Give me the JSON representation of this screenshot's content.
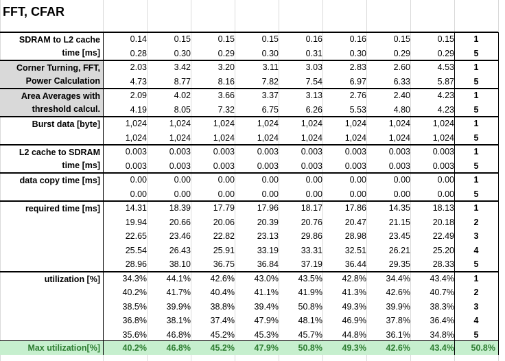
{
  "title": "FFT, CFAR",
  "blocks": [
    {
      "label": "SDRAM to L2 cache time [ms]",
      "gray": false,
      "rows": [
        {
          "values": [
            "0.14",
            "0.15",
            "0.15",
            "0.15",
            "0.16",
            "0.16",
            "0.15",
            "0.15"
          ],
          "n": "1"
        },
        {
          "values": [
            "0.28",
            "0.30",
            "0.29",
            "0.30",
            "0.31",
            "0.30",
            "0.29",
            "0.29"
          ],
          "n": "5"
        }
      ]
    },
    {
      "label": "Corner Turning, FFT, Power Calculation",
      "gray": true,
      "rows": [
        {
          "values": [
            "2.03",
            "3.42",
            "3.20",
            "3.11",
            "3.03",
            "2.83",
            "2.60",
            "4.53"
          ],
          "n": "1"
        },
        {
          "values": [
            "4.73",
            "8.77",
            "8.16",
            "7.82",
            "7.54",
            "6.97",
            "6.33",
            "5.87"
          ],
          "n": "5"
        }
      ]
    },
    {
      "label": "Area Averages with threshold calcul.",
      "gray": true,
      "rows": [
        {
          "values": [
            "2.09",
            "4.02",
            "3.66",
            "3.37",
            "3.13",
            "2.76",
            "2.40",
            "4.23"
          ],
          "n": "1"
        },
        {
          "values": [
            "4.19",
            "8.05",
            "7.32",
            "6.75",
            "6.26",
            "5.53",
            "4.80",
            "4.23"
          ],
          "n": "5"
        }
      ]
    },
    {
      "label": "Burst data [byte]",
      "gray": false,
      "rows": [
        {
          "values": [
            "1,024",
            "1,024",
            "1,024",
            "1,024",
            "1,024",
            "1,024",
            "1,024",
            "1,024"
          ],
          "n": "1"
        },
        {
          "values": [
            "1,024",
            "1,024",
            "1,024",
            "1,024",
            "1,024",
            "1,024",
            "1,024",
            "1,024"
          ],
          "n": "5"
        }
      ]
    },
    {
      "label": "L2 cache to SDRAM time [ms]",
      "gray": false,
      "rows": [
        {
          "values": [
            "0.003",
            "0.003",
            "0.003",
            "0.003",
            "0.003",
            "0.003",
            "0.003",
            "0.003"
          ],
          "n": "1"
        },
        {
          "values": [
            "0.003",
            "0.003",
            "0.003",
            "0.003",
            "0.003",
            "0.003",
            "0.003",
            "0.003"
          ],
          "n": "5"
        }
      ]
    },
    {
      "label": "data copy time [ms]",
      "gray": false,
      "rows": [
        {
          "values": [
            "0.00",
            "0.00",
            "0.00",
            "0.00",
            "0.00",
            "0.00",
            "0.00",
            "0.00"
          ],
          "n": "1"
        },
        {
          "values": [
            "0.00",
            "0.00",
            "0.00",
            "0.00",
            "0.00",
            "0.00",
            "0.00",
            "0.00"
          ],
          "n": "5"
        }
      ]
    },
    {
      "label": "required time [ms]",
      "gray": false,
      "rows": [
        {
          "values": [
            "14.31",
            "18.39",
            "17.79",
            "17.96",
            "18.17",
            "17.86",
            "14.35",
            "18.13"
          ],
          "n": "1"
        },
        {
          "values": [
            "19.94",
            "20.66",
            "20.06",
            "20.39",
            "20.76",
            "20.47",
            "21.15",
            "20.18"
          ],
          "n": "2"
        },
        {
          "values": [
            "22.65",
            "23.46",
            "22.82",
            "23.13",
            "29.86",
            "28.98",
            "23.45",
            "22.49"
          ],
          "n": "3"
        },
        {
          "values": [
            "25.54",
            "26.43",
            "25.91",
            "33.19",
            "33.31",
            "32.51",
            "26.21",
            "25.20"
          ],
          "n": "4"
        },
        {
          "values": [
            "28.96",
            "38.10",
            "36.75",
            "36.84",
            "37.19",
            "36.44",
            "29.35",
            "28.33"
          ],
          "n": "5"
        }
      ]
    },
    {
      "label": "utilization [%]",
      "gray": false,
      "rows": [
        {
          "values": [
            "34.3%",
            "44.1%",
            "42.6%",
            "43.0%",
            "43.5%",
            "42.8%",
            "34.4%",
            "43.4%"
          ],
          "n": "1"
        },
        {
          "values": [
            "40.2%",
            "41.7%",
            "40.4%",
            "41.1%",
            "41.9%",
            "41.3%",
            "42.6%",
            "40.7%"
          ],
          "n": "2"
        },
        {
          "values": [
            "38.5%",
            "39.9%",
            "38.8%",
            "39.4%",
            "50.8%",
            "49.3%",
            "39.9%",
            "38.3%"
          ],
          "n": "3"
        },
        {
          "values": [
            "36.8%",
            "38.1%",
            "37.4%",
            "47.9%",
            "48.1%",
            "46.9%",
            "37.8%",
            "36.4%"
          ],
          "n": "4"
        },
        {
          "values": [
            "35.6%",
            "46.8%",
            "45.2%",
            "45.3%",
            "45.7%",
            "44.8%",
            "36.1%",
            "34.8%"
          ],
          "n": "5"
        }
      ]
    }
  ],
  "max_row": {
    "label": "Max utilization[%]",
    "values": [
      "40.2%",
      "46.8%",
      "45.2%",
      "47.9%",
      "50.8%",
      "49.3%",
      "42.6%",
      "43.4%"
    ],
    "overall": "50.8%"
  }
}
